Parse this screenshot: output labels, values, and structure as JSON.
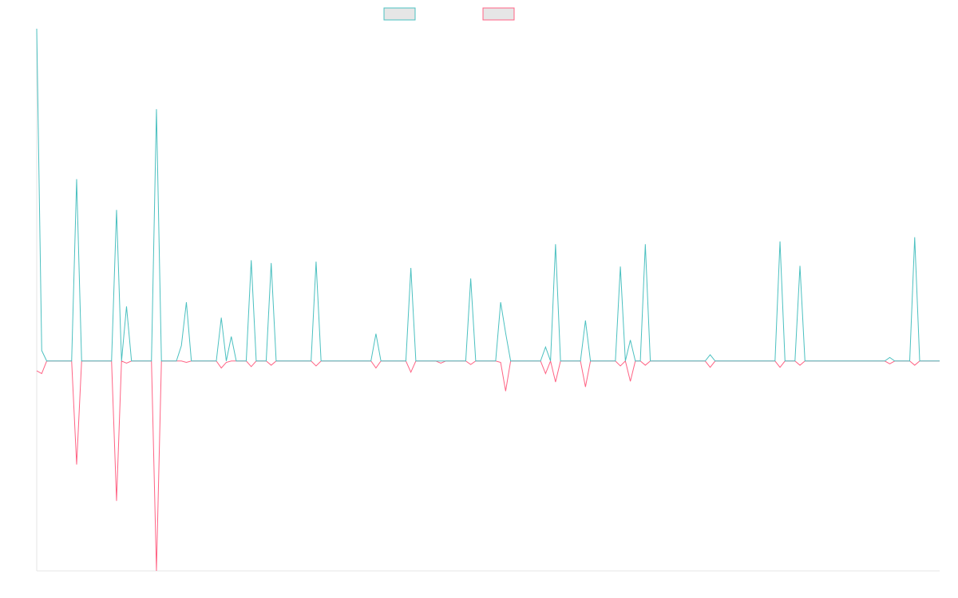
{
  "chart_data": {
    "type": "line",
    "title": "",
    "xlabel": "",
    "ylabel": "",
    "grid": false,
    "legend_position": "top-center",
    "ylim": [
      -300,
      475
    ],
    "x_count": 182,
    "series": [
      {
        "color": "#4bc0c0",
        "points": [
          [
            0,
            475
          ],
          [
            1,
            15
          ],
          [
            2,
            0
          ],
          [
            7,
            0
          ],
          [
            8,
            260
          ],
          [
            9,
            0
          ],
          [
            15,
            0
          ],
          [
            16,
            216
          ],
          [
            17,
            0
          ],
          [
            18,
            78
          ],
          [
            19,
            0
          ],
          [
            23,
            0
          ],
          [
            24,
            360
          ],
          [
            25,
            0
          ],
          [
            28,
            0
          ],
          [
            29,
            22
          ],
          [
            30,
            84
          ],
          [
            31,
            0
          ],
          [
            36,
            0
          ],
          [
            37,
            62
          ],
          [
            38,
            0
          ],
          [
            39,
            35
          ],
          [
            40,
            0
          ],
          [
            42,
            0
          ],
          [
            43,
            144
          ],
          [
            44,
            0
          ],
          [
            46,
            0
          ],
          [
            47,
            140
          ],
          [
            48,
            0
          ],
          [
            55,
            0
          ],
          [
            56,
            142
          ],
          [
            57,
            0
          ],
          [
            67,
            0
          ],
          [
            68,
            39
          ],
          [
            69,
            0
          ],
          [
            74,
            0
          ],
          [
            75,
            133
          ],
          [
            76,
            0
          ],
          [
            86,
            0
          ],
          [
            87,
            118
          ],
          [
            88,
            0
          ],
          [
            92,
            0
          ],
          [
            93,
            84
          ],
          [
            94,
            40
          ],
          [
            95,
            0
          ],
          [
            101,
            0
          ],
          [
            102,
            20
          ],
          [
            103,
            0
          ],
          [
            104,
            167
          ],
          [
            105,
            0
          ],
          [
            109,
            0
          ],
          [
            110,
            58
          ],
          [
            111,
            0
          ],
          [
            116,
            0
          ],
          [
            117,
            135
          ],
          [
            118,
            0
          ],
          [
            119,
            30
          ],
          [
            120,
            0
          ],
          [
            121,
            0
          ],
          [
            122,
            167
          ],
          [
            123,
            0
          ],
          [
            134,
            0
          ],
          [
            135,
            9
          ],
          [
            136,
            0
          ],
          [
            148,
            0
          ],
          [
            149,
            171
          ],
          [
            150,
            0
          ],
          [
            152,
            0
          ],
          [
            153,
            136
          ],
          [
            154,
            0
          ],
          [
            170,
            0
          ],
          [
            171,
            5
          ],
          [
            172,
            0
          ],
          [
            175,
            0
          ],
          [
            176,
            177
          ],
          [
            177,
            0
          ],
          [
            181,
            0
          ]
        ]
      },
      {
        "color": "#ff6384",
        "points": [
          [
            0,
            -14
          ],
          [
            1,
            -18
          ],
          [
            2,
            0
          ],
          [
            7,
            0
          ],
          [
            8,
            -148
          ],
          [
            9,
            0
          ],
          [
            15,
            0
          ],
          [
            16,
            -200
          ],
          [
            17,
            0
          ],
          [
            18,
            -3
          ],
          [
            19,
            0
          ],
          [
            23,
            0
          ],
          [
            24,
            -300
          ],
          [
            25,
            0
          ],
          [
            28,
            0
          ],
          [
            29,
            0
          ],
          [
            30,
            -2
          ],
          [
            31,
            0
          ],
          [
            36,
            0
          ],
          [
            37,
            -10
          ],
          [
            38,
            -2
          ],
          [
            39,
            0
          ],
          [
            40,
            0
          ],
          [
            42,
            0
          ],
          [
            43,
            -8
          ],
          [
            44,
            0
          ],
          [
            46,
            0
          ],
          [
            47,
            -6
          ],
          [
            48,
            0
          ],
          [
            55,
            0
          ],
          [
            56,
            -7
          ],
          [
            57,
            0
          ],
          [
            67,
            0
          ],
          [
            68,
            -10
          ],
          [
            69,
            0
          ],
          [
            74,
            0
          ],
          [
            75,
            -16
          ],
          [
            76,
            0
          ],
          [
            80,
            0
          ],
          [
            81,
            -3
          ],
          [
            82,
            0
          ],
          [
            86,
            0
          ],
          [
            87,
            -5
          ],
          [
            88,
            0
          ],
          [
            92,
            0
          ],
          [
            93,
            -2
          ],
          [
            94,
            -43
          ],
          [
            95,
            0
          ],
          [
            101,
            0
          ],
          [
            102,
            -18
          ],
          [
            103,
            0
          ],
          [
            104,
            -30
          ],
          [
            105,
            0
          ],
          [
            109,
            0
          ],
          [
            110,
            -37
          ],
          [
            111,
            0
          ],
          [
            116,
            0
          ],
          [
            117,
            -7
          ],
          [
            118,
            0
          ],
          [
            119,
            -29
          ],
          [
            120,
            0
          ],
          [
            121,
            0
          ],
          [
            122,
            -6
          ],
          [
            123,
            0
          ],
          [
            134,
            0
          ],
          [
            135,
            -9
          ],
          [
            136,
            0
          ],
          [
            148,
            0
          ],
          [
            149,
            -9
          ],
          [
            150,
            0
          ],
          [
            152,
            0
          ],
          [
            153,
            -6
          ],
          [
            154,
            0
          ],
          [
            170,
            0
          ],
          [
            171,
            -4
          ],
          [
            172,
            0
          ],
          [
            175,
            0
          ],
          [
            176,
            -6
          ],
          [
            177,
            0
          ],
          [
            181,
            0
          ]
        ]
      }
    ]
  }
}
